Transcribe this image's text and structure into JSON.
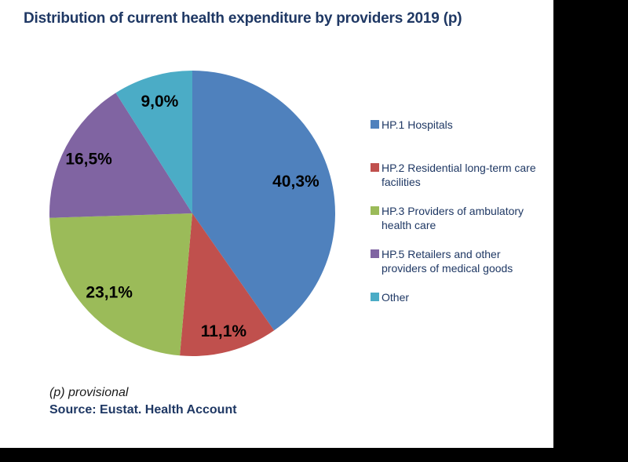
{
  "title": "Distribution of current health expenditure by providers 2019 (p)",
  "footnote": "(p) provisional",
  "source": "Source: Eustat. Health Account",
  "colors": {
    "title_text": "#1F3864",
    "legend_text": "#1F3864",
    "footnote_text": "#1A1A1A",
    "slice_label_text": "#000000",
    "canvas_background": "#FFFFFF",
    "outside_background": "#000000"
  },
  "chart_data": {
    "type": "pie",
    "title": "Distribution of current health expenditure by providers 2019 (p)",
    "start_angle": "12 o'clock",
    "direction": "clockwise",
    "legend_position": "right",
    "value_decimal_separator": ",",
    "series": [
      {
        "label": "HP.1 Hospitals",
        "value": 40.3,
        "display": "40,3%",
        "color": "#4F81BD"
      },
      {
        "label": "HP.2 Residential long-term care facilities",
        "value": 11.1,
        "display": "11,1%",
        "color": "#C0504D"
      },
      {
        "label": "HP.3 Providers of ambulatory health care",
        "value": 23.1,
        "display": "23,1%",
        "color": "#9BBB59"
      },
      {
        "label": "HP.5 Retailers and other providers of medical goods",
        "value": 16.5,
        "display": "16,5%",
        "color": "#8064A2"
      },
      {
        "label": "Other",
        "value": 9.0,
        "display": "9,0%",
        "color": "#4BACC6"
      }
    ]
  }
}
